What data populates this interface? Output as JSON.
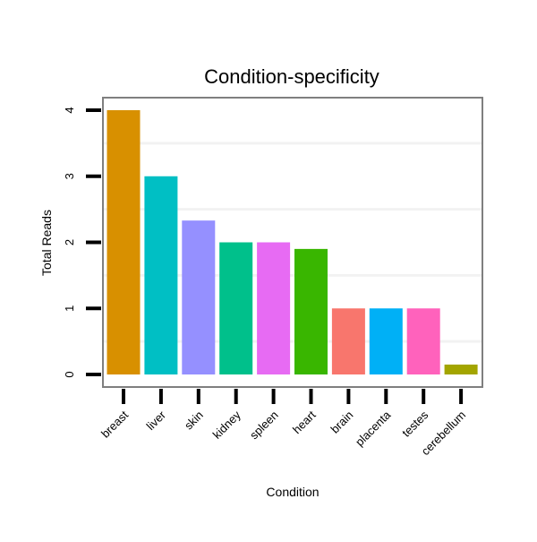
{
  "chart_data": {
    "type": "bar",
    "title": "Condition-specificity",
    "xlabel": "Condition",
    "ylabel": "Total Reads",
    "categories": [
      "breast",
      "liver",
      "skin",
      "kidney",
      "spleen",
      "heart",
      "brain",
      "placenta",
      "testes",
      "cerebellum"
    ],
    "values": [
      4,
      3,
      2.33,
      2,
      2,
      1.9,
      1,
      1,
      1,
      0.15
    ],
    "colors": [
      "#d89000",
      "#00bfc4",
      "#9590ff",
      "#00c08b",
      "#e76bf3",
      "#39b600",
      "#f8766d",
      "#00b0f6",
      "#ff62bc",
      "#a3a500"
    ],
    "ylim": [
      0,
      4
    ],
    "yticks": [
      0,
      1,
      2,
      3,
      4
    ],
    "grid": "horizontal-minor",
    "legend": "none"
  }
}
